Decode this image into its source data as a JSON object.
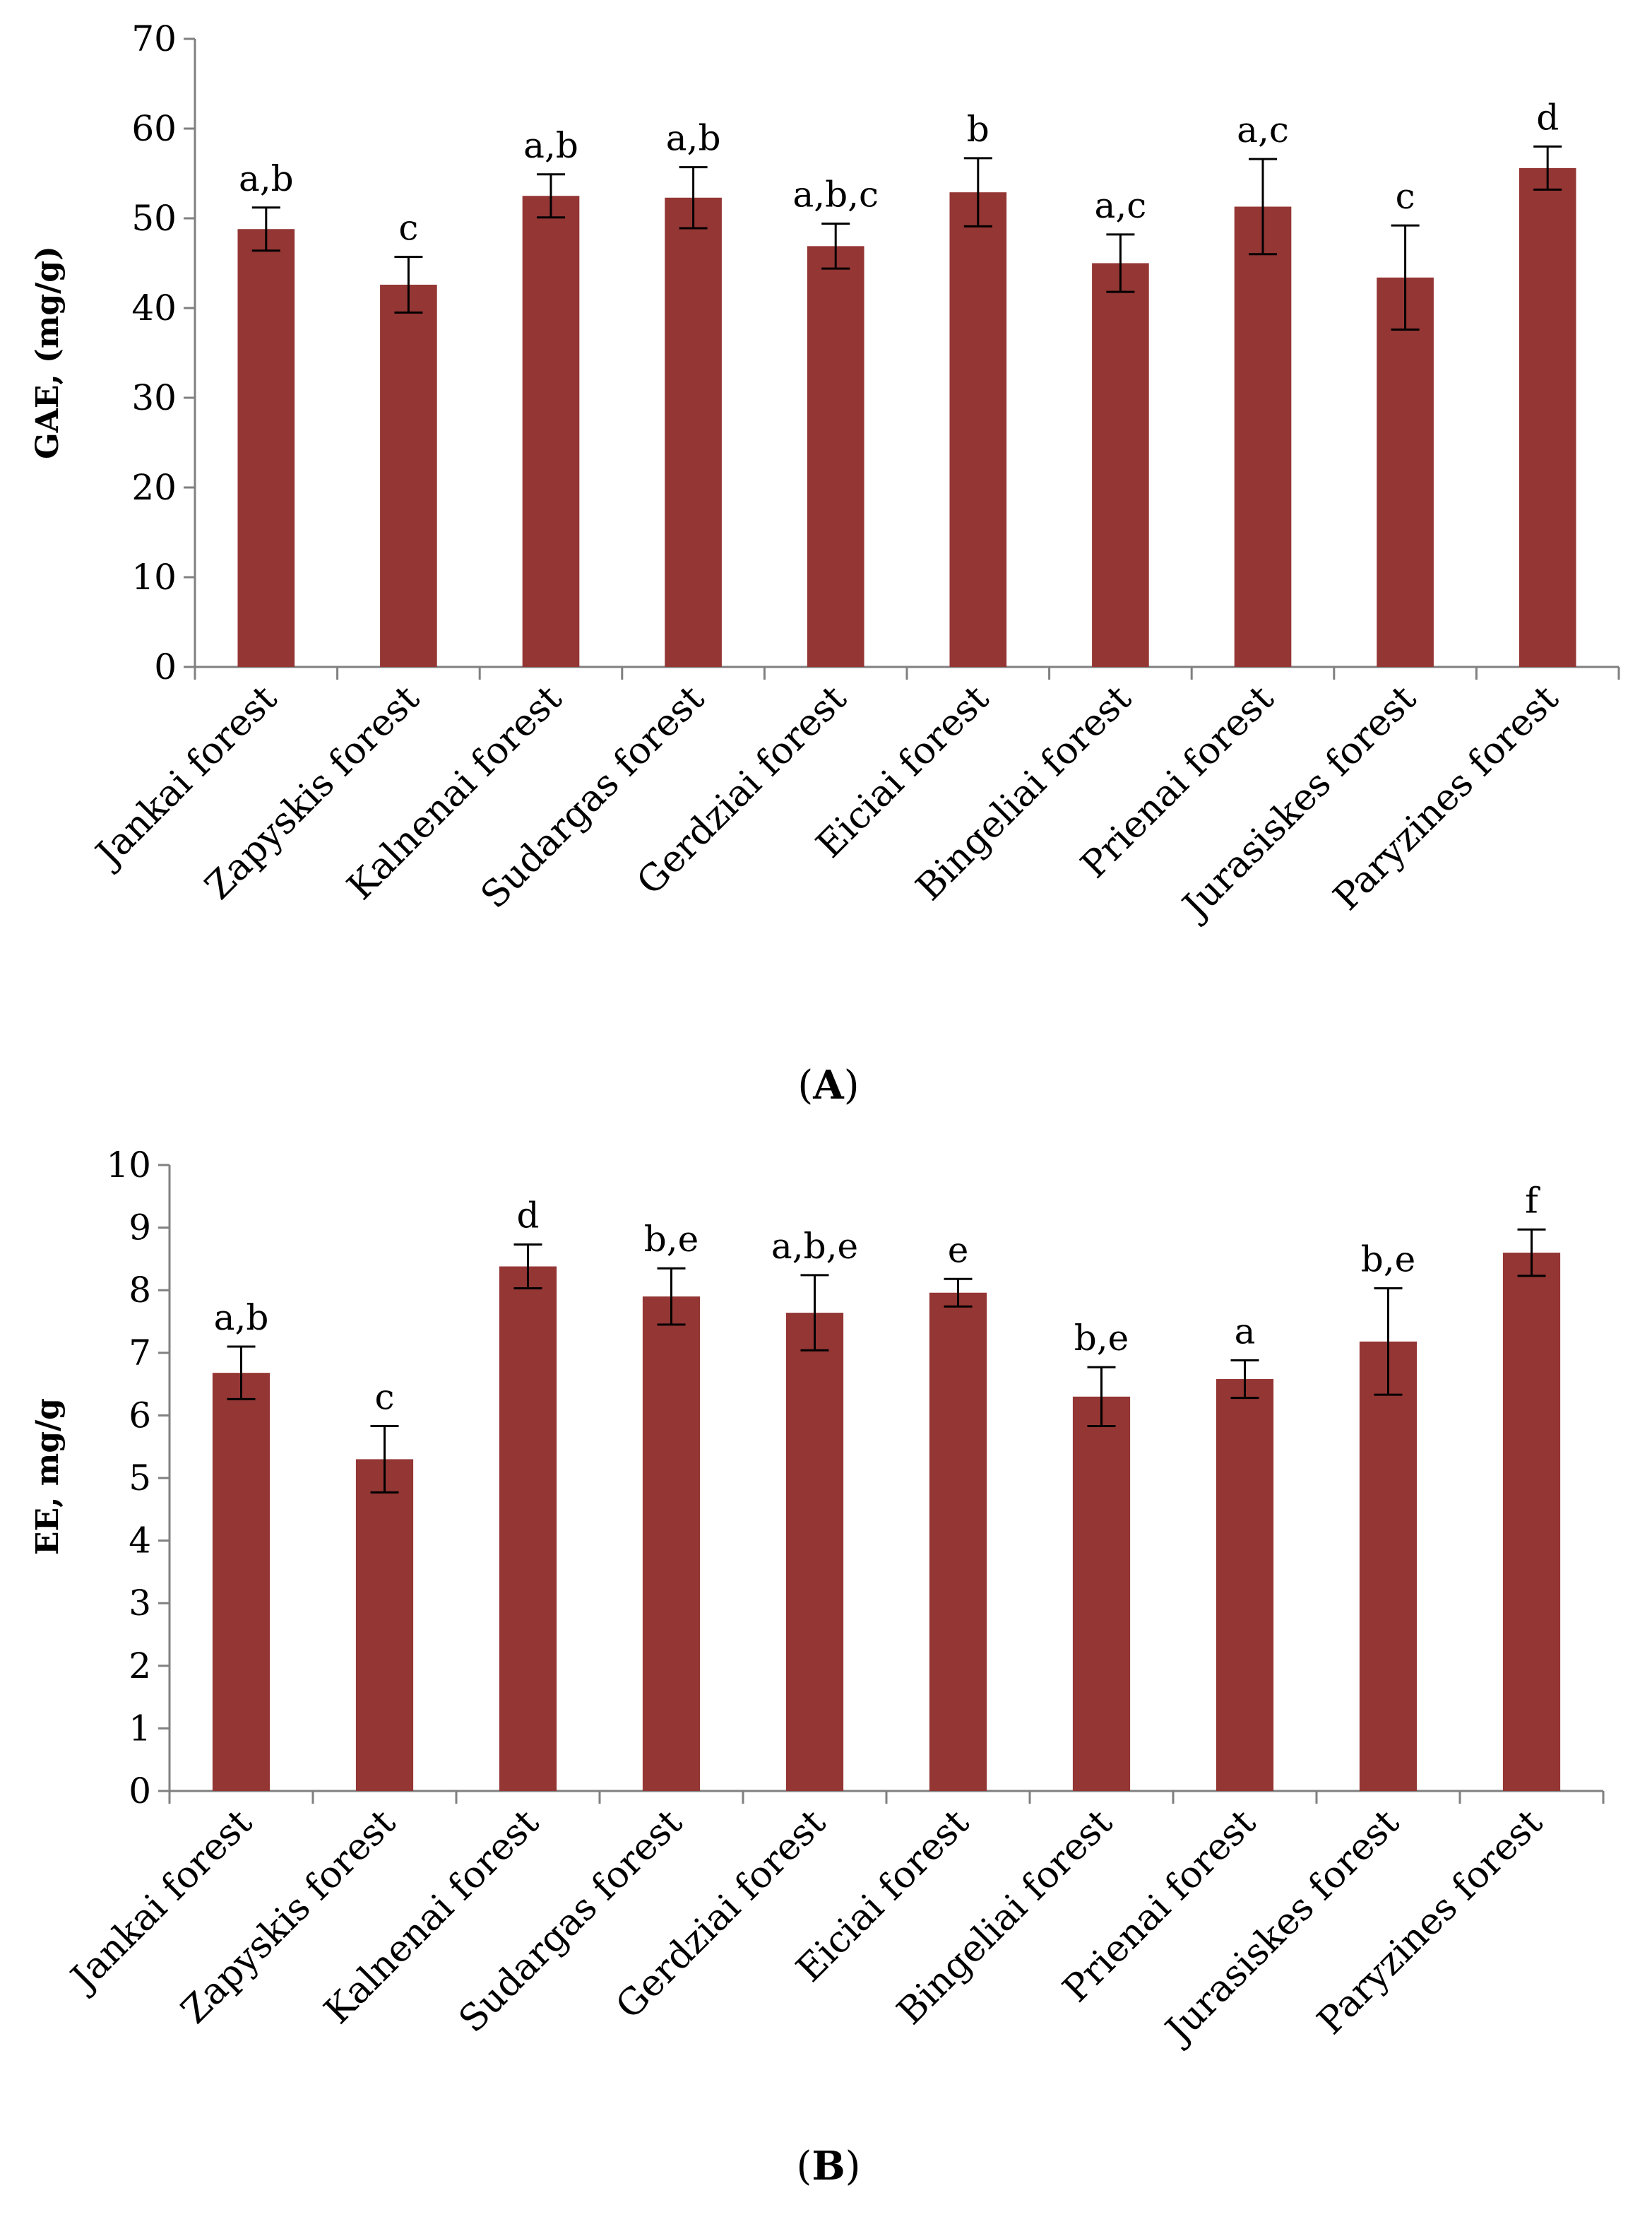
{
  "colors": {
    "bar": "#943634",
    "axis": "#808080",
    "error": "#000000"
  },
  "chart_data": [
    {
      "type": "bar",
      "panel": "A",
      "panel_label": {
        "open": "(",
        "letter": "A",
        "close": ")"
      },
      "title": "",
      "xlabel": "",
      "ylabel": "GAE, (mg/g)",
      "ylim": [
        0,
        70
      ],
      "yticks": [
        0,
        10,
        20,
        30,
        40,
        50,
        60,
        70
      ],
      "grid": false,
      "legend": "none",
      "categories": [
        "Jankai forest",
        "Zapyskis forest",
        "Kalnenai forest",
        "Sudargas forest",
        "Gerdziai forest",
        "Eiciai forest",
        "Bingeliai forest",
        "Prienai forest",
        "Jurasiskes forest",
        "Paryzines forest"
      ],
      "values": [
        48.8,
        42.6,
        52.5,
        52.3,
        46.9,
        52.9,
        45.0,
        51.3,
        43.4,
        55.6
      ],
      "errors": [
        2.4,
        3.1,
        2.4,
        3.4,
        2.5,
        3.8,
        3.2,
        5.3,
        5.8,
        2.4
      ],
      "significance": [
        "a,b",
        "c",
        "a,b",
        "a,b",
        "a,b,c",
        "b",
        "a,c",
        "a,c",
        "c",
        "d"
      ]
    },
    {
      "type": "bar",
      "panel": "B",
      "panel_label": {
        "open": "(",
        "letter": "B",
        "close": ")"
      },
      "title": "",
      "xlabel": "",
      "ylabel": "EE, mg/g",
      "ylim": [
        0,
        10
      ],
      "yticks": [
        0,
        1,
        2,
        3,
        4,
        5,
        6,
        7,
        8,
        9,
        10
      ],
      "grid": false,
      "legend": "none",
      "categories": [
        "Jankai forest",
        "Zapyskis forest",
        "Kalnenai forest",
        "Sudargas forest",
        "Gerdziai forest",
        "Eiciai forest",
        "Bingeliai forest",
        "Prienai forest",
        "Jurasiskes forest",
        "Paryzines forest"
      ],
      "values": [
        6.68,
        5.3,
        8.38,
        7.9,
        7.64,
        7.96,
        6.3,
        6.58,
        7.18,
        8.6
      ],
      "errors": [
        0.42,
        0.53,
        0.35,
        0.45,
        0.6,
        0.22,
        0.47,
        0.3,
        0.85,
        0.37
      ],
      "significance": [
        "a,b",
        "c",
        "d",
        "b,e",
        "a,b,e",
        "e",
        "b,e",
        "a",
        "b,e",
        "f"
      ]
    }
  ]
}
